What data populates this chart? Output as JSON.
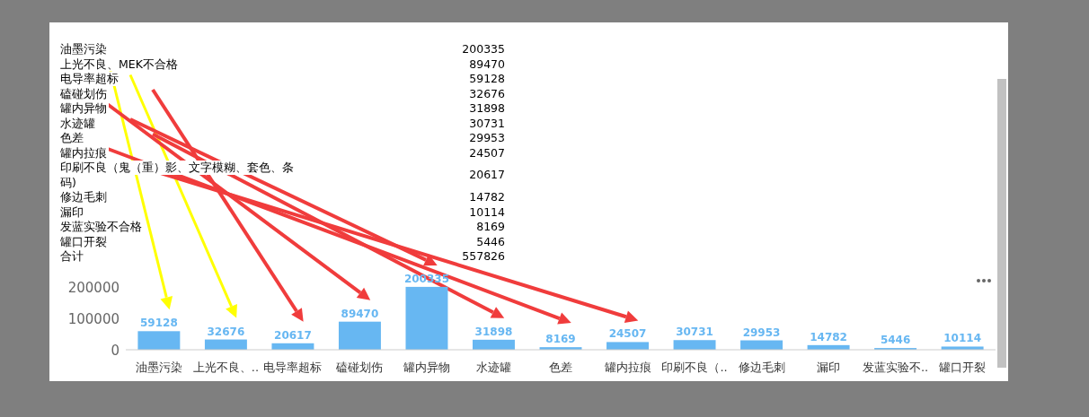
{
  "chart_data": {
    "type": "bar",
    "categories": [
      "油墨污染",
      "上光不良、..",
      "电导率超标",
      "磕碰划伤",
      "罐内异物",
      "水迹罐",
      "色差",
      "罐内拉痕",
      "印刷不良（..",
      "修边毛刺",
      "漏印",
      "发蓝实验不..",
      "罐口开裂"
    ],
    "values": [
      59128,
      32676,
      20617,
      89470,
      200335,
      31898,
      8169,
      24507,
      30731,
      29953,
      14782,
      5446,
      10114
    ],
    "color": "#67b7f2",
    "ylim": [
      0,
      210000
    ],
    "yticks": [
      0,
      100000,
      200000
    ],
    "grid": false,
    "data_labels": true,
    "annotations": [
      "油墨污染",
      "200335",
      "上光不良、MEK不合格",
      "89470",
      "电导率超标",
      "59128",
      "磕碰划伤",
      "32676",
      "罐内异物",
      "31898",
      "水迹罐",
      "30731",
      "色差",
      "29953",
      "罐内拉痕",
      "24507",
      "印刷不良（鬼（重）影、文字模糊、套色、条码)",
      "20617",
      "修边毛刺",
      "14782",
      "漏印",
      "10114",
      "发蓝实验不合格",
      "8169",
      "罐口开裂",
      "5446",
      "合计",
      "557826"
    ]
  }
}
